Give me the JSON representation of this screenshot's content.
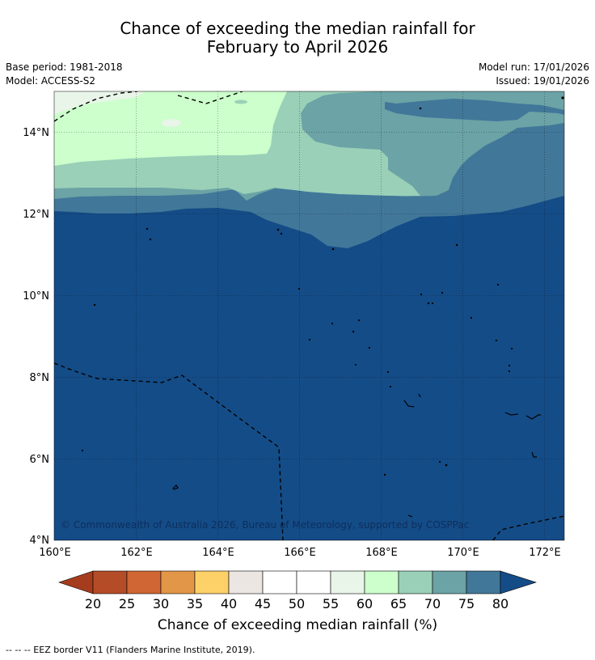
{
  "title_line1": "Chance of exceeding the median rainfall for",
  "title_line2": "February to April 2026",
  "base_period": "Base period: 1981-2018",
  "model": "Model: ACCESS-S2",
  "model_run": "Model run: 17/01/2026",
  "issued": "Issued: 19/01/2026",
  "copyright": "© Commonwealth of Australia 2026, Bureau of Meteorology, supported by COSPPac",
  "map": {
    "lon_labels": [
      "160°E",
      "162°E",
      "164°E",
      "166°E",
      "168°E",
      "170°E",
      "172°E"
    ],
    "lat_labels": [
      "4°N",
      "6°N",
      "8°N",
      "10°N",
      "12°N",
      "14°N"
    ],
    "dominant_category": "80",
    "colors": {
      "c55_60": "#e8f5e8",
      "c60_65": "#ccffcc",
      "c65_70": "#9ad0b8",
      "c70_75": "#6ba3a6",
      "c75_80": "#417799",
      "c80": "#144c87",
      "land": "#000000"
    }
  },
  "colorbar": {
    "ticks": [
      "20",
      "25",
      "30",
      "35",
      "40",
      "45",
      "50",
      "55",
      "60",
      "65",
      "70",
      "75",
      "80"
    ],
    "colors": [
      "#a63c1e",
      "#b44c27",
      "#cf6633",
      "#e29647",
      "#fdd068",
      "#ebe6e1",
      "#ffffff",
      "#ffffff",
      "#e8f5e8",
      "#ccffcc",
      "#9ad0b8",
      "#6ba3a6",
      "#417799",
      "#144c87"
    ],
    "label": "Chance of exceeding median rainfall (%)"
  },
  "footer": "-- -- -- EEZ border V11 (Flanders Marine Institute, 2019)."
}
